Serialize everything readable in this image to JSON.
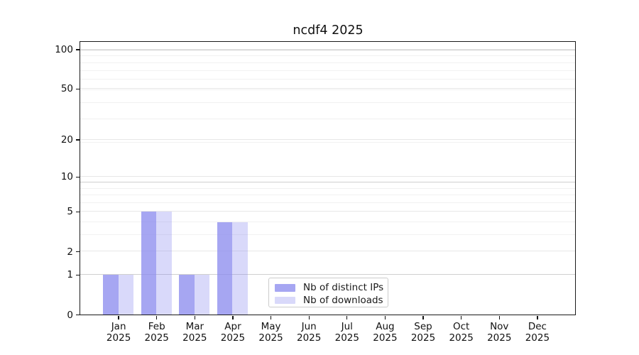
{
  "chart_data": {
    "type": "bar",
    "title": "ncdf4 2025",
    "categories": [
      "Jan",
      "Feb",
      "Mar",
      "Apr",
      "May",
      "Jun",
      "Jul",
      "Aug",
      "Sep",
      "Oct",
      "Nov",
      "Dec"
    ],
    "year_label": "2025",
    "series": [
      {
        "name": "Nb of distinct IPs",
        "color": "rgba(136,136,238,0.75)",
        "values": [
          1,
          5,
          1,
          4,
          0,
          0,
          0,
          0,
          0,
          0,
          0,
          0
        ]
      },
      {
        "name": "Nb of downloads",
        "color": "rgba(136,136,238,0.32)",
        "values": [
          1,
          5,
          1,
          4,
          0,
          0,
          0,
          0,
          0,
          0,
          0,
          0
        ]
      }
    ],
    "scale": "log1p",
    "y_ticks": [
      0,
      1,
      2,
      5,
      10,
      20,
      50,
      100
    ],
    "grid": true,
    "grid_strong": [
      1,
      9,
      99
    ],
    "grid_major": [
      2,
      5,
      10,
      20,
      50,
      100
    ],
    "grid_minor": [
      3,
      4,
      6,
      7,
      8,
      19,
      29,
      39,
      49,
      59,
      69,
      79,
      89
    ],
    "legend_position": "lower-center",
    "colors": {
      "grid_strong": "#cfcfcf",
      "grid_major": "#e7e7e7",
      "grid_minor": "#f1f1f1",
      "spine": "#1a1a1a",
      "text": "#111111"
    }
  }
}
